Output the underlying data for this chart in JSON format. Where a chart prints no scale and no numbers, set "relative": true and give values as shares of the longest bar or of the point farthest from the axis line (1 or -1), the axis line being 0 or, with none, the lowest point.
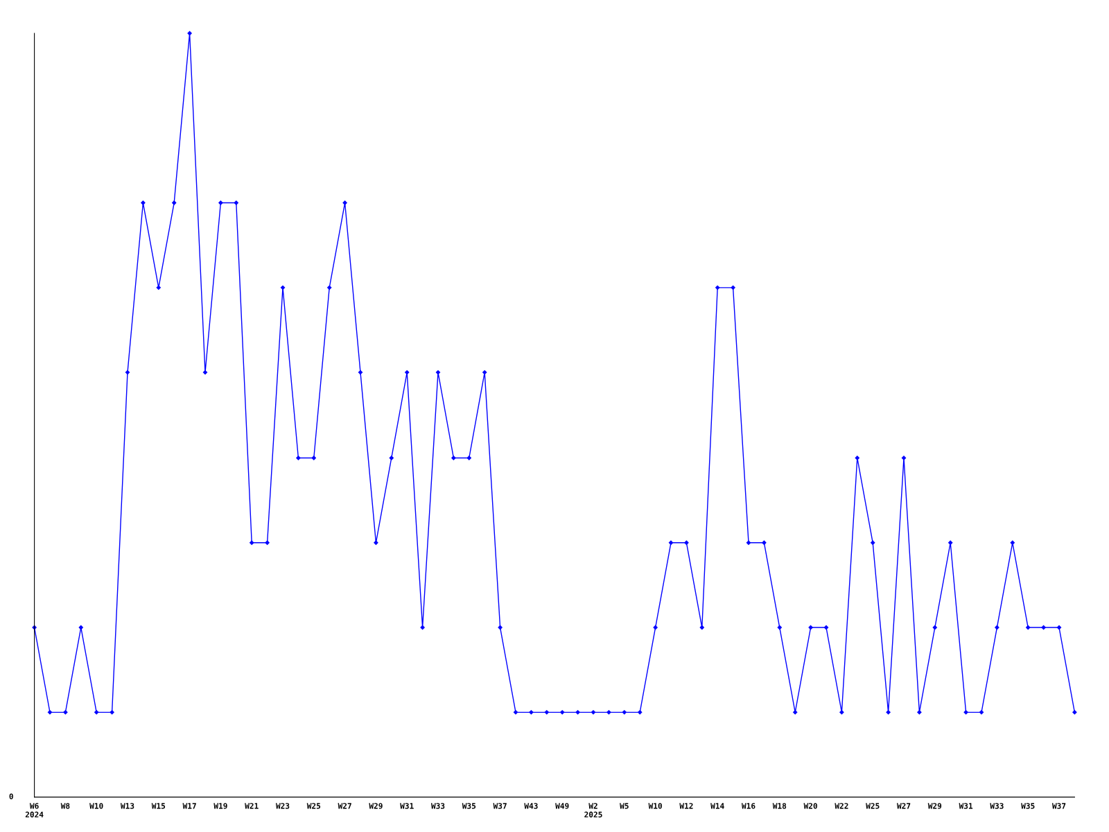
{
  "chart_data": {
    "type": "line",
    "relative": true,
    "color": "#0000ff",
    "marker": "diamond",
    "grid": false,
    "legend": false,
    "categories": [
      "W6\n2024",
      null,
      "W8",
      null,
      "W10",
      null,
      "W13",
      null,
      "W15",
      null,
      "W17",
      null,
      "W19",
      null,
      "W21",
      null,
      "W23",
      null,
      "W25",
      null,
      "W27",
      null,
      "W29",
      null,
      "W31",
      null,
      "W33",
      null,
      "W35",
      null,
      "W37",
      null,
      "W43",
      null,
      "W49",
      null,
      "W2\n2025",
      null,
      "W5",
      null,
      "W10",
      null,
      "W12",
      null,
      "W14",
      null,
      "W16",
      null,
      "W18",
      null,
      "W20",
      null,
      "W22",
      null,
      "W25",
      null,
      "W27",
      null,
      "W29",
      null,
      "W31",
      null,
      "W33",
      null,
      "W35",
      null,
      "W37",
      null
    ],
    "values": [
      0.222,
      0.111,
      0.111,
      0.222,
      0.111,
      0.111,
      0.556,
      0.778,
      0.667,
      0.778,
      1,
      0.556,
      0.778,
      0.778,
      0.333,
      0.333,
      0.667,
      0.444,
      0.444,
      0.667,
      0.778,
      0.556,
      0.333,
      0.444,
      0.556,
      0.222,
      0.556,
      0.444,
      0.444,
      0.556,
      0.222,
      0.111,
      0.111,
      0.111,
      0.111,
      0.111,
      0.111,
      0.111,
      0.111,
      0.111,
      0.222,
      0.333,
      0.333,
      0.222,
      0.667,
      0.667,
      0.333,
      0.333,
      0.222,
      0.111,
      0.222,
      0.222,
      0.111,
      0.444,
      0.333,
      0.111,
      0.444,
      0.111,
      0.222,
      0.333,
      0.111,
      0.111,
      0.222,
      0.333,
      0.222,
      0.222,
      0.222,
      0.111
    ],
    "annotations": [
      "0"
    ]
  }
}
